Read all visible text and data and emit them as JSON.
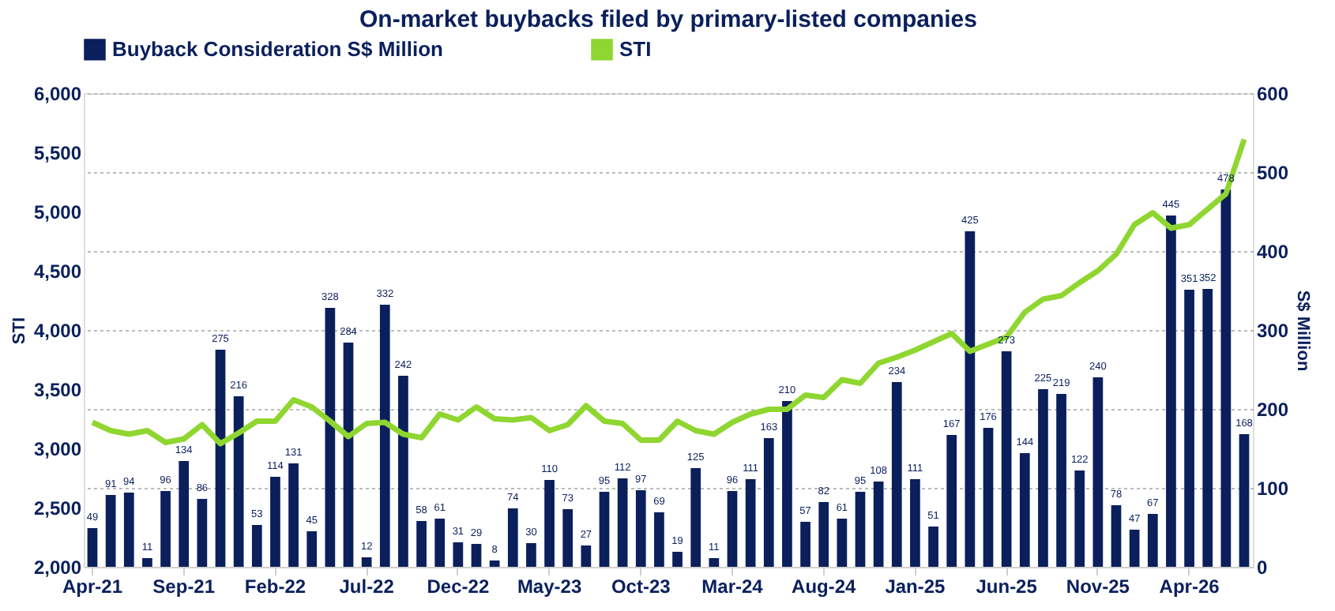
{
  "chart_data": {
    "type": "bar",
    "title": "On-market buybacks filed by primary-listed companies",
    "categories": [
      "Apr-21",
      null,
      null,
      null,
      null,
      "Sep-21",
      null,
      null,
      null,
      null,
      "Feb-22",
      null,
      null,
      null,
      null,
      "Jul-22",
      null,
      null,
      null,
      null,
      "Dec-22",
      null,
      null,
      null,
      null,
      "May-23",
      null,
      null,
      null,
      null,
      "Oct-23",
      null,
      null,
      null,
      null,
      "Mar-24",
      null,
      null,
      null,
      null,
      "Aug-24",
      null,
      null,
      null,
      null,
      "Jan-25",
      null,
      null,
      null,
      null,
      "Jun-25",
      null,
      null,
      null,
      null,
      "Nov-25",
      null,
      null,
      null,
      null,
      "Apr-26",
      null,
      null,
      null
    ],
    "series": [
      {
        "name": "Buyback Consideration S$ Million",
        "axis": "y2",
        "color": "#0a1f5c",
        "values": [
          49,
          91,
          94,
          11,
          96,
          134,
          86,
          275,
          216,
          53,
          114,
          131,
          45,
          328,
          284,
          12,
          332,
          242,
          58,
          61,
          31,
          29,
          8,
          74,
          30,
          110,
          73,
          27,
          95,
          112,
          97,
          69,
          19,
          125,
          11,
          96,
          111,
          163,
          210,
          57,
          82,
          61,
          95,
          108,
          234,
          111,
          51,
          167,
          425,
          176,
          273,
          144,
          225,
          219,
          122,
          240,
          78,
          47,
          67,
          445,
          351,
          352,
          478,
          168
        ],
        "value_labels": [
          "49",
          "91",
          "94",
          "11",
          "96",
          "134",
          "86",
          "275",
          "216",
          "53",
          "114",
          "131",
          "45",
          "328",
          "284",
          "12",
          "332",
          "242",
          "58",
          "61",
          "31",
          "29",
          "8",
          "74",
          "30",
          "110",
          "73",
          "27",
          "95",
          "112",
          "97",
          "69",
          "19",
          "125",
          "11",
          "96",
          "111",
          "163",
          "210",
          "57",
          "82",
          "61",
          "95",
          "108",
          "234",
          "111",
          "51",
          "167",
          "425",
          "176",
          "273",
          "144",
          "225",
          "219",
          "122",
          "240",
          "78",
          "47",
          "67",
          "445",
          "351",
          "352",
          "478",
          "168"
        ]
      },
      {
        "name": "STI",
        "type": "line",
        "axis": "y",
        "color": "#8fd630",
        "values": [
          3220,
          3150,
          3120,
          3150,
          3050,
          3080,
          3200,
          3040,
          3130,
          3230,
          3230,
          3410,
          3350,
          3230,
          3100,
          3210,
          3220,
          3120,
          3090,
          3290,
          3240,
          3350,
          3250,
          3240,
          3260,
          3150,
          3200,
          3360,
          3230,
          3210,
          3070,
          3070,
          3230,
          3150,
          3120,
          3220,
          3290,
          3330,
          3330,
          3450,
          3430,
          3580,
          3550,
          3720,
          3770,
          3830,
          3900,
          3970,
          3820,
          3880,
          3940,
          4150,
          4260,
          4290,
          4400,
          4500,
          4640,
          4890,
          4990,
          4860,
          4890,
          5020,
          5150,
          5610
        ]
      }
    ],
    "ylabel": "STI",
    "y2label": "S$ Million",
    "ylim": [
      2000,
      6000
    ],
    "yticks": [
      {
        "value": 2000,
        "label": "2,000"
      },
      {
        "value": 2500,
        "label": "2,500"
      },
      {
        "value": 3000,
        "label": "3,000"
      },
      {
        "value": 3500,
        "label": "3,500"
      },
      {
        "value": 4000,
        "label": "4,000"
      },
      {
        "value": 4500,
        "label": "4,500"
      },
      {
        "value": 5000,
        "label": "5,000"
      },
      {
        "value": 5500,
        "label": "5,500"
      },
      {
        "value": 6000,
        "label": "6,000"
      }
    ],
    "y2lim": [
      0,
      600
    ],
    "y2ticks": [
      0,
      100,
      200,
      300,
      400,
      500,
      600
    ],
    "grid": "y2",
    "legend": "top"
  }
}
